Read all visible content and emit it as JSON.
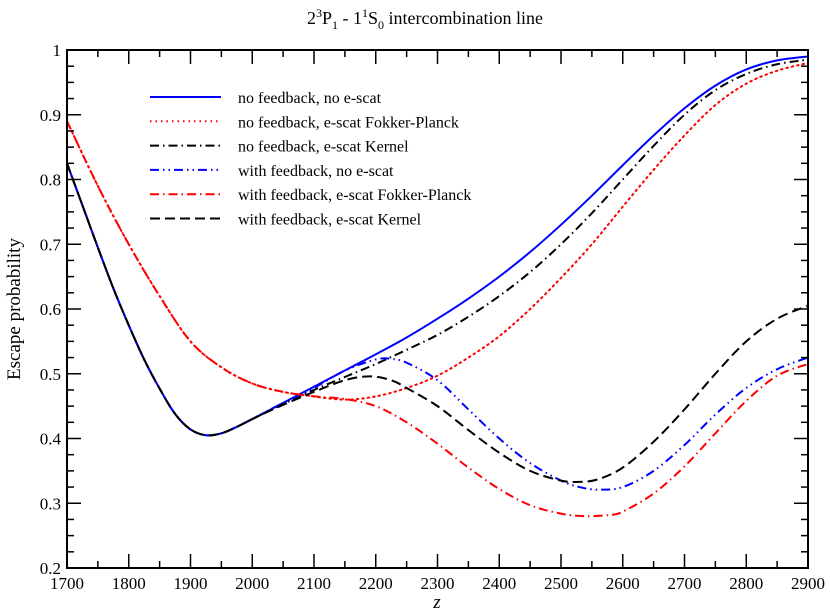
{
  "chart_data": {
    "type": "line",
    "title": "2³P₁ - 1¹S₀ intercombination line",
    "title_parts": {
      "base1": "2",
      "sup1": "3",
      "letter1": "P",
      "sub1": "1",
      "sep": " - ",
      "base2": "1",
      "sup2": "1",
      "letter2": "S",
      "sub2": "0",
      "rest": " intercombination line"
    },
    "xlabel": "z",
    "ylabel": "Escape probability",
    "xlim": [
      1700,
      2900
    ],
    "ylim": [
      0.2,
      1.0
    ],
    "xticks": [
      1700,
      1800,
      1900,
      2000,
      2100,
      2200,
      2300,
      2400,
      2500,
      2600,
      2700,
      2800,
      2900
    ],
    "xtick_labels": [
      "1700",
      "1800",
      "1900",
      "2000",
      "2100",
      "2200",
      "2300",
      "2400",
      "2500",
      "2600",
      "2700",
      "2800",
      "2900"
    ],
    "xminor_step": 50,
    "yticks": [
      0.2,
      0.3,
      0.4,
      0.5,
      0.6,
      0.7,
      0.8,
      0.9,
      1.0
    ],
    "ytick_labels": [
      "0.2",
      "0.3",
      "0.4",
      "0.5",
      "0.6",
      "0.7",
      "0.8",
      "0.9",
      "1"
    ],
    "yminor_step": 0.025,
    "grid": false,
    "legend_position": "upper-left",
    "series": [
      {
        "name": "no feedback, no e-scat",
        "color": "#0000ff",
        "style": "solid",
        "x": [
          1700,
          1725,
          1750,
          1775,
          1800,
          1825,
          1850,
          1875,
          1900,
          1925,
          1950,
          1975,
          2000,
          2050,
          2100,
          2150,
          2200,
          2250,
          2300,
          2350,
          2400,
          2450,
          2500,
          2550,
          2600,
          2650,
          2700,
          2750,
          2800,
          2850,
          2900
        ],
        "values": [
          0.825,
          0.76,
          0.695,
          0.632,
          0.575,
          0.522,
          0.477,
          0.438,
          0.414,
          0.405,
          0.408,
          0.418,
          0.43,
          0.455,
          0.48,
          0.505,
          0.53,
          0.556,
          0.585,
          0.616,
          0.65,
          0.688,
          0.73,
          0.775,
          0.822,
          0.868,
          0.91,
          0.945,
          0.97,
          0.984,
          0.99
        ]
      },
      {
        "name": "no feedback, e-scat Fokker-Planck",
        "color": "#ff0000",
        "style": "dotted",
        "x": [
          1700,
          1750,
          1800,
          1850,
          1900,
          1950,
          2000,
          2050,
          2100,
          2150,
          2200,
          2250,
          2300,
          2350,
          2400,
          2450,
          2500,
          2550,
          2600,
          2650,
          2700,
          2750,
          2800,
          2850,
          2900
        ],
        "values": [
          0.89,
          0.79,
          0.7,
          0.62,
          0.55,
          0.51,
          0.485,
          0.472,
          0.465,
          0.46,
          0.465,
          0.478,
          0.497,
          0.525,
          0.558,
          0.6,
          0.648,
          0.7,
          0.758,
          0.815,
          0.868,
          0.915,
          0.948,
          0.968,
          0.98
        ]
      },
      {
        "name": "no feedback, e-scat Kernel",
        "color": "#000000",
        "style": "dashdot",
        "x": [
          1700,
          1725,
          1750,
          1775,
          1800,
          1825,
          1850,
          1875,
          1900,
          1925,
          1950,
          1975,
          2000,
          2050,
          2100,
          2150,
          2200,
          2250,
          2300,
          2350,
          2400,
          2450,
          2500,
          2550,
          2600,
          2650,
          2700,
          2750,
          2800,
          2850,
          2900
        ],
        "values": [
          0.825,
          0.76,
          0.695,
          0.632,
          0.575,
          0.522,
          0.477,
          0.438,
          0.414,
          0.405,
          0.408,
          0.418,
          0.43,
          0.453,
          0.475,
          0.495,
          0.515,
          0.537,
          0.56,
          0.588,
          0.62,
          0.657,
          0.7,
          0.748,
          0.8,
          0.852,
          0.9,
          0.938,
          0.963,
          0.978,
          0.985
        ]
      },
      {
        "name": "with feedback, no e-scat",
        "color": "#0000ff",
        "style": "dashdotdot",
        "x": [
          1700,
          1725,
          1750,
          1775,
          1800,
          1825,
          1850,
          1875,
          1900,
          1925,
          1950,
          1975,
          2000,
          2050,
          2100,
          2150,
          2200,
          2225,
          2250,
          2300,
          2350,
          2400,
          2450,
          2500,
          2530,
          2560,
          2600,
          2650,
          2700,
          2750,
          2800,
          2850,
          2900
        ],
        "values": [
          0.825,
          0.76,
          0.695,
          0.632,
          0.575,
          0.522,
          0.477,
          0.438,
          0.414,
          0.405,
          0.408,
          0.418,
          0.43,
          0.455,
          0.478,
          0.505,
          0.522,
          0.523,
          0.517,
          0.49,
          0.445,
          0.4,
          0.362,
          0.335,
          0.325,
          0.321,
          0.325,
          0.35,
          0.39,
          0.437,
          0.478,
          0.507,
          0.525
        ]
      },
      {
        "name": "with feedback, e-scat Fokker-Planck",
        "color": "#ff0000",
        "style": "dashdot",
        "x": [
          1700,
          1750,
          1800,
          1850,
          1900,
          1950,
          2000,
          2050,
          2100,
          2150,
          2200,
          2250,
          2300,
          2350,
          2400,
          2450,
          2500,
          2540,
          2580,
          2600,
          2650,
          2700,
          2750,
          2800,
          2850,
          2900
        ],
        "values": [
          0.89,
          0.79,
          0.7,
          0.62,
          0.55,
          0.51,
          0.485,
          0.472,
          0.465,
          0.461,
          0.45,
          0.425,
          0.392,
          0.355,
          0.322,
          0.297,
          0.284,
          0.28,
          0.282,
          0.287,
          0.315,
          0.357,
          0.408,
          0.458,
          0.497,
          0.515
        ]
      },
      {
        "name": "with feedback, e-scat Kernel",
        "color": "#000000",
        "style": "dashed",
        "x": [
          1700,
          1725,
          1750,
          1775,
          1800,
          1825,
          1850,
          1875,
          1900,
          1925,
          1950,
          1975,
          2000,
          2050,
          2100,
          2150,
          2190,
          2225,
          2250,
          2300,
          2350,
          2400,
          2450,
          2500,
          2530,
          2560,
          2600,
          2650,
          2700,
          2750,
          2800,
          2850,
          2900
        ],
        "values": [
          0.825,
          0.76,
          0.695,
          0.632,
          0.575,
          0.522,
          0.477,
          0.438,
          0.414,
          0.405,
          0.408,
          0.418,
          0.43,
          0.452,
          0.472,
          0.49,
          0.496,
          0.49,
          0.478,
          0.45,
          0.413,
          0.378,
          0.35,
          0.335,
          0.333,
          0.337,
          0.355,
          0.395,
          0.445,
          0.5,
          0.55,
          0.585,
          0.605
        ]
      }
    ]
  }
}
